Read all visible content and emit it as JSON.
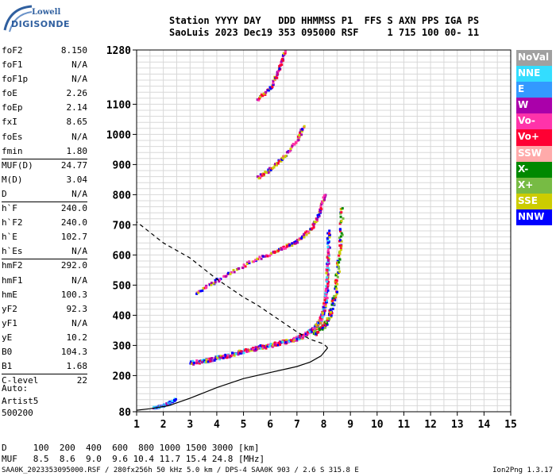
{
  "logo": {
    "line1": "Lowell",
    "line2": "DIGISONDE"
  },
  "header": {
    "line1": "Station YYYY DAY   DDD HHMMSS P1  FFS S AXN PPS IGA PS",
    "line2": "SaoLuis 2023 Dec19 353 095000 RSF     1 715 100 00- 11"
  },
  "params": [
    {
      "k": "foF2",
      "v": "8.150"
    },
    {
      "k": "foF1",
      "v": "N/A"
    },
    {
      "k": "foF1p",
      "v": "N/A"
    },
    {
      "k": "foE",
      "v": "2.26"
    },
    {
      "k": "foEp",
      "v": "2.14"
    },
    {
      "k": "fxI",
      "v": "8.65"
    },
    {
      "k": "foEs",
      "v": "N/A"
    },
    {
      "k": "fmin",
      "v": "1.80"
    },
    {
      "k": "MUF(D)",
      "v": "24.77"
    },
    {
      "k": "M(D)",
      "v": "3.04"
    },
    {
      "k": "D",
      "v": "N/A"
    },
    {
      "k": "h`F",
      "v": "240.0"
    },
    {
      "k": "h`F2",
      "v": "240.0"
    },
    {
      "k": "h`E",
      "v": "102.7"
    },
    {
      "k": "h`Es",
      "v": "N/A"
    },
    {
      "k": "hmF2",
      "v": "292.0"
    },
    {
      "k": "hmF1",
      "v": "N/A"
    },
    {
      "k": "hmE",
      "v": "100.3"
    },
    {
      "k": "yF2",
      "v": "92.3"
    },
    {
      "k": "yF1",
      "v": "N/A"
    },
    {
      "k": "yE",
      "v": "10.2"
    },
    {
      "k": "B0",
      "v": "104.3"
    },
    {
      "k": "B1",
      "v": "1.68"
    },
    {
      "k": "C-level",
      "v": "22"
    }
  ],
  "auto": {
    "line1": "Auto:",
    "line2": "Artist5",
    "line3": "500200"
  },
  "legend": [
    {
      "label": "NoVal",
      "color": "#a0a0a0"
    },
    {
      "label": "NNE",
      "color": "#33ddff"
    },
    {
      "label": "E",
      "color": "#3399ff"
    },
    {
      "label": "W",
      "color": "#aa00aa"
    },
    {
      "label": "Vo-",
      "color": "#ff33aa"
    },
    {
      "label": "Vo+",
      "color": "#ff0033"
    },
    {
      "label": "SSW",
      "color": "#ffaaaa"
    },
    {
      "label": "X-",
      "color": "#008800"
    },
    {
      "label": "X+",
      "color": "#77bb44"
    },
    {
      "label": "SSE",
      "color": "#cccc00"
    },
    {
      "label": "NNW",
      "color": "#0000ff"
    }
  ],
  "footer": {
    "line1": "D     100  200  400  600  800 1000 1500 3000 [km]",
    "line2": "MUF   8.5  8.6  9.0  9.6 10.4 11.7 15.4 24.8 [MHz]"
  },
  "bottom": {
    "info": "SAA0K_2023353095000.RSF / 280fx256h 50 kHz 5.0 km / DPS-4 SAA0K 903 / 2.6 S 315.8 E",
    "version": "Ion2Png 1.3.17"
  },
  "chart_data": {
    "type": "scatter",
    "xlim": [
      1,
      15
    ],
    "ylim": [
      80,
      1280
    ],
    "xticks": [
      1,
      2,
      3,
      4,
      5,
      6,
      7,
      8,
      9,
      10,
      11,
      12,
      13,
      14,
      15
    ],
    "yticks": [
      80,
      200,
      300,
      400,
      500,
      600,
      700,
      800,
      900,
      1000,
      1100,
      1280
    ],
    "grid": true,
    "traces": {
      "o_f2": {
        "x": [
          3.0,
          3.5,
          4.0,
          4.5,
          5.0,
          5.5,
          6.0,
          6.5,
          7.0,
          7.3,
          7.6,
          7.8,
          7.95,
          8.05,
          8.1,
          8.13,
          8.15
        ],
        "y": [
          245,
          252,
          262,
          272,
          285,
          295,
          305,
          315,
          328,
          340,
          358,
          380,
          410,
          460,
          530,
          600,
          680
        ]
      },
      "x_f2": {
        "x": [
          7.6,
          7.9,
          8.1,
          8.25,
          8.4,
          8.5,
          8.6,
          8.65
        ],
        "y": [
          345,
          360,
          385,
          420,
          480,
          560,
          650,
          760
        ]
      },
      "e_layer": {
        "x": [
          1.6,
          1.8,
          2.0,
          2.2,
          2.4
        ],
        "y": [
          98,
          100,
          104,
          112,
          125
        ]
      },
      "multi_2": {
        "x": [
          3.2,
          4.0,
          5.0,
          6.0,
          6.5,
          7.0,
          7.5,
          7.8,
          8.0
        ],
        "y": [
          475,
          520,
          570,
          608,
          628,
          650,
          690,
          740,
          800
        ]
      },
      "multi_3": {
        "x": [
          5.5,
          6.0,
          6.5,
          7.0,
          7.2
        ],
        "y": [
          860,
          890,
          930,
          985,
          1030
        ]
      },
      "multi_4": {
        "x": [
          5.5,
          6.0,
          6.3,
          6.5
        ],
        "y": [
          1120,
          1160,
          1220,
          1275
        ]
      },
      "profile": {
        "x": [
          1.0,
          1.5,
          2.2,
          3.0,
          4.0,
          5.0,
          6.0,
          7.0,
          7.5,
          7.9,
          8.15,
          8.0,
          7.5,
          7.0,
          6.5,
          6.0,
          5.5,
          5.0,
          4.5,
          4.0,
          3.5,
          3.0,
          2.0,
          1.0
        ],
        "y": [
          85,
          90,
          100,
          125,
          160,
          190,
          210,
          230,
          245,
          265,
          292,
          305,
          320,
          345,
          375,
          405,
          435,
          460,
          490,
          520,
          555,
          590,
          640,
          710
        ]
      }
    }
  }
}
